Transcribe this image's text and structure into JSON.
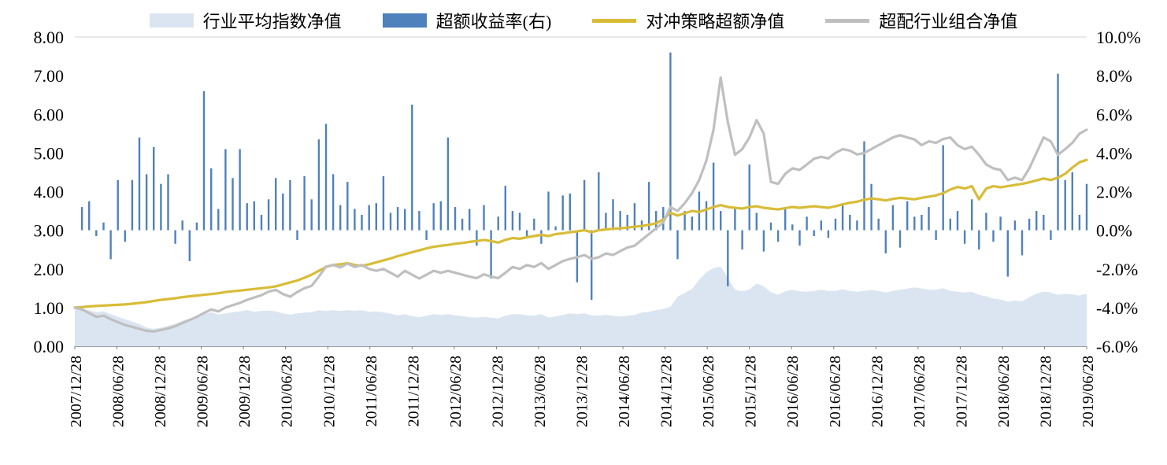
{
  "legend": [
    {
      "label": "行业平均指数净值",
      "type": "area"
    },
    {
      "label": "超额收益率(右)",
      "type": "bar"
    },
    {
      "label": "对冲策略超额净值",
      "type": "line"
    },
    {
      "label": "超配行业组合净值",
      "type": "line"
    }
  ],
  "chart_data": {
    "type": "combo",
    "title": "",
    "x_start": "2007/12/28",
    "x_freq_months": 1,
    "x_count": 142,
    "x_axis": {
      "labels": [
        "2007/12/28",
        "2008/06/28",
        "2008/12/28",
        "2009/06/28",
        "2009/12/28",
        "2010/06/28",
        "2010/12/28",
        "2011/06/28",
        "2011/12/28",
        "2012/06/28",
        "2012/12/28",
        "2013/06/28",
        "2013/12/28",
        "2014/06/28",
        "2014/12/28",
        "2015/06/28",
        "2015/12/28",
        "2016/06/28",
        "2016/06/28",
        "2016/12/28",
        "2017/06/28",
        "2017/12/28",
        "2018/06/28",
        "2018/12/28",
        "2019/06/28"
      ]
    },
    "left_axis": {
      "min": 0,
      "max": 8,
      "tick_labels": [
        "8.00",
        "7.00",
        "6.00",
        "5.00",
        "4.00",
        "3.00",
        "2.00",
        "1.00",
        "0.00"
      ]
    },
    "right_axis": {
      "min": -6,
      "max": 10,
      "tick_labels": [
        "10.0%",
        "8.0%",
        "6.0%",
        "4.0%",
        "2.0%",
        "0.0%",
        "-2.0%",
        "-4.0%",
        "-6.0%"
      ]
    },
    "frame_colors": {
      "top_border": "#d9d9d9",
      "bottom_axis": "#7f7f7f"
    },
    "series": [
      {
        "name": "行业平均指数净值",
        "type": "area",
        "axis": "left",
        "color": "#dbe5f1",
        "values": [
          1.0,
          0.97,
          0.93,
          0.88,
          0.9,
          0.83,
          0.76,
          0.7,
          0.64,
          0.57,
          0.48,
          0.45,
          0.48,
          0.53,
          0.58,
          0.66,
          0.71,
          0.76,
          0.83,
          0.88,
          0.82,
          0.85,
          0.88,
          0.9,
          0.93,
          0.89,
          0.91,
          0.92,
          0.9,
          0.85,
          0.82,
          0.85,
          0.87,
          0.88,
          0.93,
          0.91,
          0.93,
          0.91,
          0.93,
          0.92,
          0.93,
          0.89,
          0.9,
          0.88,
          0.84,
          0.8,
          0.83,
          0.78,
          0.75,
          0.79,
          0.83,
          0.81,
          0.83,
          0.8,
          0.78,
          0.75,
          0.74,
          0.76,
          0.74,
          0.72,
          0.79,
          0.83,
          0.83,
          0.8,
          0.79,
          0.83,
          0.74,
          0.77,
          0.81,
          0.85,
          0.83,
          0.85,
          0.8,
          0.79,
          0.81,
          0.79,
          0.77,
          0.79,
          0.81,
          0.87,
          0.89,
          0.93,
          0.96,
          1.02,
          1.28,
          1.38,
          1.48,
          1.72,
          1.92,
          2.02,
          2.06,
          1.76,
          1.46,
          1.42,
          1.47,
          1.62,
          1.55,
          1.4,
          1.33,
          1.42,
          1.46,
          1.42,
          1.41,
          1.43,
          1.46,
          1.43,
          1.43,
          1.47,
          1.43,
          1.41,
          1.43,
          1.46,
          1.43,
          1.39,
          1.43,
          1.46,
          1.49,
          1.52,
          1.49,
          1.46,
          1.46,
          1.5,
          1.43,
          1.41,
          1.39,
          1.41,
          1.33,
          1.29,
          1.23,
          1.21,
          1.15,
          1.18,
          1.16,
          1.27,
          1.36,
          1.41,
          1.39,
          1.33,
          1.36,
          1.34,
          1.31,
          1.36
        ]
      },
      {
        "name": "超额收益率(右)",
        "type": "bar",
        "axis": "right",
        "color": "#4f81bd",
        "values": [
          0,
          1.2,
          1.5,
          -0.3,
          0.4,
          -1.5,
          2.6,
          -0.6,
          2.6,
          4.8,
          2.9,
          4.3,
          2.4,
          2.9,
          -0.7,
          0.5,
          -1.6,
          0.4,
          7.2,
          3.2,
          1.1,
          4.2,
          2.7,
          4.2,
          1.4,
          1.5,
          0.8,
          1.6,
          2.7,
          1.9,
          2.6,
          -0.5,
          2.8,
          1.6,
          4.7,
          5.5,
          2.9,
          1.3,
          2.5,
          1.1,
          0.8,
          1.3,
          1.4,
          2.8,
          0.9,
          1.2,
          1.1,
          6.5,
          1.0,
          -0.5,
          1.4,
          1.5,
          4.8,
          1.2,
          0.6,
          1.1,
          -0.8,
          1.3,
          -2.5,
          0.7,
          2.3,
          1.0,
          0.9,
          -0.4,
          0.6,
          -0.7,
          2.0,
          0.2,
          1.8,
          1.9,
          -2.7,
          2.6,
          -3.6,
          3.0,
          0.9,
          1.6,
          1.0,
          0.8,
          1.4,
          0.5,
          2.5,
          1.0,
          1.2,
          9.2,
          -1.5,
          1.0,
          0.7,
          2.0,
          1.5,
          3.5,
          1.0,
          -2.9,
          1.2,
          -1.0,
          3.4,
          0.9,
          -1.1,
          0.4,
          -0.6,
          1.2,
          0.3,
          -0.8,
          0.7,
          -0.3,
          0.5,
          -0.4,
          0.6,
          1.4,
          0.8,
          0.5,
          4.6,
          2.4,
          0.6,
          -1.2,
          1.3,
          -0.9,
          1.5,
          0.7,
          0.8,
          1.2,
          -0.5,
          4.4,
          0.6,
          1.0,
          -0.7,
          1.6,
          -1.0,
          0.9,
          -0.6,
          0.7,
          -2.4,
          0.5,
          -1.3,
          0.6,
          1.0,
          0.8,
          -0.5,
          8.1,
          2.6,
          3.0,
          0.8,
          2.4
        ]
      },
      {
        "name": "对冲策略超额净值",
        "type": "line",
        "axis": "left",
        "color": "#d8bc37",
        "values": [
          1.0,
          1.01,
          1.03,
          1.04,
          1.05,
          1.06,
          1.07,
          1.08,
          1.1,
          1.12,
          1.14,
          1.17,
          1.2,
          1.22,
          1.24,
          1.27,
          1.29,
          1.31,
          1.33,
          1.35,
          1.37,
          1.4,
          1.42,
          1.44,
          1.46,
          1.48,
          1.5,
          1.52,
          1.55,
          1.6,
          1.65,
          1.7,
          1.77,
          1.85,
          1.95,
          2.05,
          2.1,
          2.12,
          2.15,
          2.1,
          2.08,
          2.12,
          2.17,
          2.22,
          2.27,
          2.33,
          2.38,
          2.43,
          2.48,
          2.53,
          2.57,
          2.6,
          2.62,
          2.65,
          2.67,
          2.7,
          2.72,
          2.75,
          2.72,
          2.68,
          2.75,
          2.8,
          2.78,
          2.82,
          2.85,
          2.88,
          2.85,
          2.9,
          2.92,
          2.95,
          2.97,
          3.0,
          2.95,
          3.0,
          3.02,
          3.04,
          3.05,
          3.07,
          3.09,
          3.11,
          3.14,
          3.18,
          3.28,
          3.45,
          3.38,
          3.44,
          3.5,
          3.47,
          3.54,
          3.6,
          3.65,
          3.6,
          3.58,
          3.56,
          3.6,
          3.62,
          3.58,
          3.56,
          3.54,
          3.57,
          3.6,
          3.58,
          3.6,
          3.62,
          3.6,
          3.58,
          3.62,
          3.67,
          3.71,
          3.74,
          3.79,
          3.82,
          3.8,
          3.77,
          3.81,
          3.84,
          3.82,
          3.8,
          3.84,
          3.87,
          3.9,
          3.96,
          4.05,
          4.12,
          4.08,
          4.14,
          3.8,
          4.08,
          4.14,
          4.11,
          4.14,
          4.17,
          4.2,
          4.24,
          4.29,
          4.34,
          4.3,
          4.36,
          4.46,
          4.62,
          4.76,
          4.82
        ]
      },
      {
        "name": "超配行业组合净值",
        "type": "line",
        "axis": "left",
        "color": "#bfbfbf",
        "values": [
          1.0,
          0.95,
          0.86,
          0.76,
          0.79,
          0.7,
          0.62,
          0.55,
          0.5,
          0.45,
          0.4,
          0.38,
          0.42,
          0.46,
          0.52,
          0.6,
          0.68,
          0.76,
          0.86,
          0.95,
          0.9,
          1.0,
          1.06,
          1.12,
          1.2,
          1.26,
          1.32,
          1.41,
          1.46,
          1.35,
          1.28,
          1.4,
          1.5,
          1.56,
          1.8,
          2.06,
          2.1,
          2.04,
          2.14,
          2.05,
          2.1,
          2.0,
          1.95,
          2.0,
          1.9,
          1.8,
          1.95,
          1.85,
          1.75,
          1.85,
          1.95,
          1.9,
          1.95,
          1.9,
          1.85,
          1.8,
          1.76,
          1.86,
          1.8,
          1.76,
          1.9,
          2.05,
          2.0,
          2.1,
          2.05,
          2.15,
          2.0,
          2.1,
          2.2,
          2.26,
          2.3,
          2.36,
          2.26,
          2.3,
          2.4,
          2.36,
          2.46,
          2.55,
          2.6,
          2.75,
          2.9,
          3.05,
          3.2,
          3.6,
          3.5,
          3.7,
          3.96,
          4.3,
          4.8,
          5.6,
          6.95,
          5.8,
          4.95,
          5.1,
          5.4,
          5.85,
          5.5,
          4.25,
          4.2,
          4.46,
          4.6,
          4.56,
          4.7,
          4.85,
          4.9,
          4.86,
          5.0,
          5.1,
          5.06,
          4.96,
          5.0,
          5.1,
          5.2,
          5.3,
          5.4,
          5.46,
          5.4,
          5.35,
          5.2,
          5.3,
          5.26,
          5.36,
          5.4,
          5.2,
          5.1,
          5.16,
          4.95,
          4.7,
          4.6,
          4.56,
          4.3,
          4.36,
          4.3,
          4.6,
          5.0,
          5.4,
          5.3,
          4.95,
          5.1,
          5.26,
          5.5,
          5.6
        ]
      }
    ]
  }
}
